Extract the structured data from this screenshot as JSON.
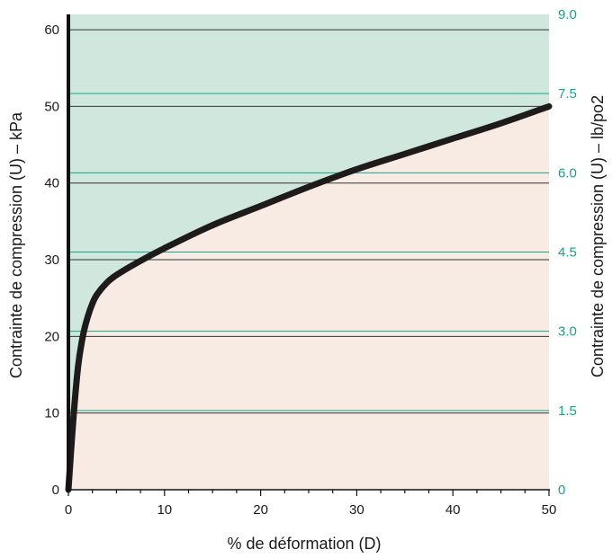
{
  "chart_data": {
    "type": "area",
    "xlabel": "% de déformation (D)",
    "ylabel": "Contrainte de compression (U) – kPa",
    "ylabel_right": "Contrainte de compression (U) – lb/po2",
    "xlim": [
      0,
      50
    ],
    "ylim": [
      0,
      62
    ],
    "ylim_right": [
      0,
      9.0
    ],
    "x_ticks": [
      "0",
      "10",
      "20",
      "30",
      "40",
      "50"
    ],
    "y_ticks": [
      "0",
      "10",
      "20",
      "30",
      "40",
      "50",
      "60"
    ],
    "y_ticks_right": [
      "0",
      "1.5",
      "3.0",
      "4.5",
      "6.0",
      "7.5",
      "9.0"
    ],
    "y_right_tick_values": [
      0,
      1.5,
      3.0,
      4.5,
      6.0,
      7.5,
      9.0
    ],
    "grid": true,
    "x": [
      0,
      0.5,
      1,
      1.5,
      2,
      2.5,
      3,
      4,
      5,
      7,
      10,
      15,
      20,
      25,
      30,
      35,
      40,
      45,
      50
    ],
    "series": [
      {
        "values": [
          0,
          9,
          16,
          20,
          22.5,
          24.3,
          25.5,
          27,
          28,
          29.5,
          31.5,
          34.5,
          37,
          39.5,
          41.8,
          43.8,
          45.8,
          47.8,
          50
        ]
      }
    ],
    "colors": {
      "upper_fill": "#cfe7dd",
      "lower_fill": "#f7ebe4",
      "curve": "#1e1b1a",
      "right_axis": "#14a58a",
      "grid_left": "#333333"
    }
  }
}
